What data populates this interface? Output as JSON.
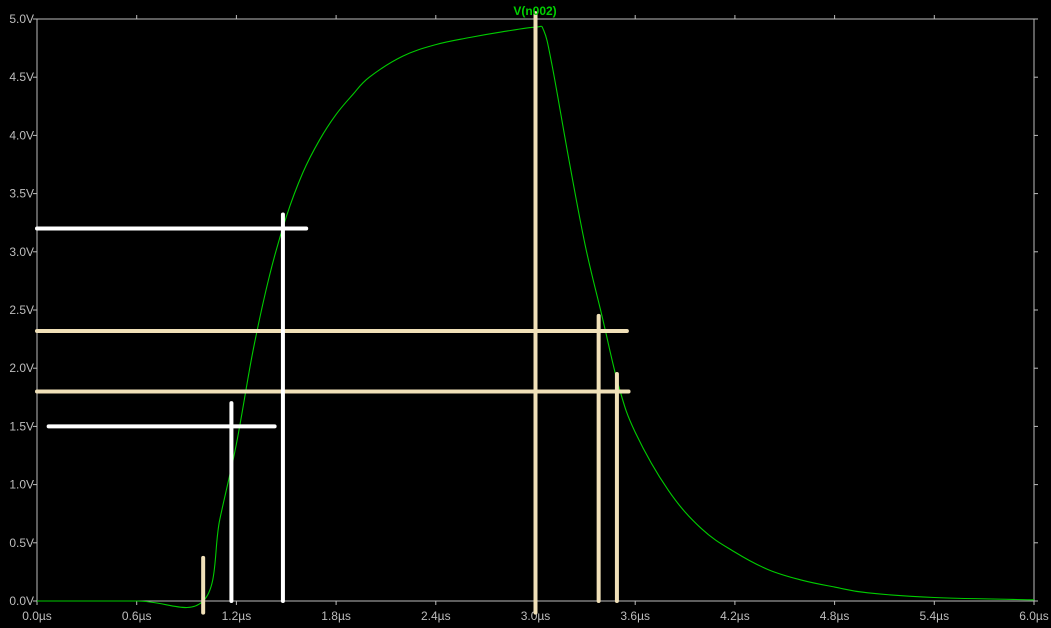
{
  "chart_data": {
    "type": "line",
    "title": "",
    "series": [
      {
        "name": "V(n002)",
        "color": "#00cc00",
        "x": [
          0.0,
          0.6,
          1.0,
          1.1,
          1.2,
          1.3,
          1.4,
          1.5,
          1.6,
          1.7,
          1.8,
          1.9,
          2.0,
          2.2,
          2.4,
          2.6,
          2.8,
          3.0,
          3.05,
          3.1,
          3.2,
          3.3,
          3.4,
          3.5,
          3.6,
          3.8,
          4.0,
          4.2,
          4.4,
          4.6,
          4.8,
          5.0,
          5.4,
          6.0
        ],
        "y": [
          0.0,
          0.0,
          0.0,
          0.7,
          1.35,
          2.15,
          2.8,
          3.3,
          3.68,
          3.96,
          4.18,
          4.35,
          4.5,
          4.68,
          4.78,
          4.84,
          4.89,
          4.93,
          4.9,
          4.6,
          3.8,
          3.05,
          2.45,
          1.85,
          1.45,
          0.95,
          0.62,
          0.42,
          0.27,
          0.18,
          0.12,
          0.07,
          0.03,
          0.01
        ]
      }
    ],
    "x_ticks": [
      "0.0µs",
      "0.6µs",
      "1.2µs",
      "1.8µs",
      "2.4µs",
      "3.0µs",
      "3.6µs",
      "4.2µs",
      "4.8µs",
      "5.4µs",
      "6.0µs"
    ],
    "y_ticks": [
      "0.0V",
      "0.5V",
      "1.0V",
      "1.5V",
      "2.0V",
      "2.5V",
      "3.0V",
      "3.5V",
      "4.0V",
      "4.5V",
      "5.0V"
    ],
    "xlim": [
      0,
      6
    ],
    "ylim": [
      0,
      5
    ],
    "background": "#000000",
    "tick_color": "#bdbdbd",
    "markers": {
      "color_white": "#ffffff",
      "color_tan": "#f0e0b8",
      "horizontal": [
        {
          "name": "marker-h-3-2",
          "y": 3.2,
          "x_from": 0.0,
          "x_to": 1.62,
          "color": "white"
        },
        {
          "name": "marker-h-2-32",
          "y": 2.32,
          "x_from": 0.0,
          "x_to": 3.55,
          "color": "tan"
        },
        {
          "name": "marker-h-1-8",
          "y": 1.8,
          "x_from": 0.0,
          "x_to": 3.56,
          "color": "tan"
        },
        {
          "name": "marker-h-1-5",
          "y": 1.5,
          "x_from": 0.07,
          "x_to": 1.43,
          "color": "white"
        }
      ],
      "vertical": [
        {
          "name": "marker-v-1-0",
          "x": 1.0,
          "y_from": 0.37,
          "y_to": -0.1,
          "color": "tan"
        },
        {
          "name": "marker-v-1-17",
          "x": 1.17,
          "y_from": 1.7,
          "y_to": 0.0,
          "color": "white"
        },
        {
          "name": "marker-v-1-48",
          "x": 1.48,
          "y_from": 3.32,
          "y_to": 0.0,
          "color": "white"
        },
        {
          "name": "marker-v-3-0",
          "x": 3.0,
          "y_from": 5.05,
          "y_to": -0.1,
          "color": "tan"
        },
        {
          "name": "marker-v-3-38",
          "x": 3.38,
          "y_from": 2.45,
          "y_to": 0.0,
          "color": "tan"
        },
        {
          "name": "marker-v-3-49",
          "x": 3.49,
          "y_from": 1.95,
          "y_to": 0.0,
          "color": "tan"
        }
      ]
    }
  }
}
